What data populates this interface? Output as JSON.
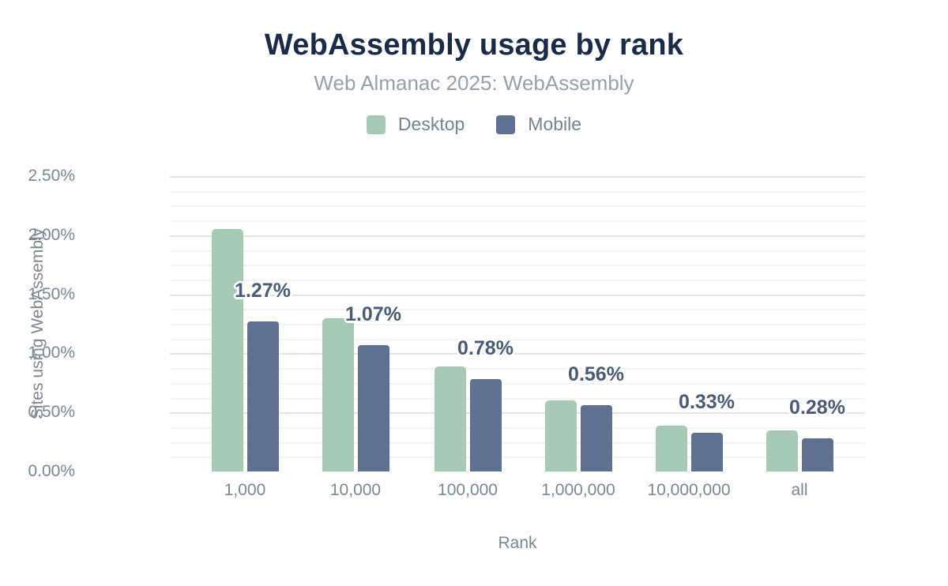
{
  "chart_data": {
    "type": "bar",
    "title": "WebAssembly usage by rank",
    "subtitle": "Web Almanac 2025: WebAssembly",
    "xlabel": "Rank",
    "ylabel": "Sites using WebAssembly",
    "categories": [
      "1,000",
      "10,000",
      "100,000",
      "1,000,000",
      "10,000,000",
      "all"
    ],
    "series": [
      {
        "name": "Desktop",
        "color": "#a6c9b5",
        "values": [
          2.05,
          1.3,
          0.89,
          0.6,
          0.39,
          0.35
        ]
      },
      {
        "name": "Mobile",
        "color": "#5f7190",
        "values": [
          1.27,
          1.07,
          0.78,
          0.56,
          0.33,
          0.28
        ]
      }
    ],
    "data_labels": {
      "on_series": "Mobile",
      "values": [
        "1.27%",
        "1.07%",
        "0.78%",
        "0.56%",
        "0.33%",
        "0.28%"
      ]
    },
    "ylim": [
      0,
      2.5
    ],
    "ytick_values": [
      0,
      0.5,
      1.0,
      1.5,
      2.0,
      2.5
    ],
    "ytick_labels": [
      "0.00%",
      "0.50%",
      "1.00%",
      "1.50%",
      "2.00%",
      "2.50%"
    ],
    "minor_grid_step": 0.125,
    "grid": "horizontal major+minor",
    "legend_position": "top",
    "colors": {
      "data_label": "#4a5a77",
      "axis_line": "#2b2b2b"
    }
  }
}
